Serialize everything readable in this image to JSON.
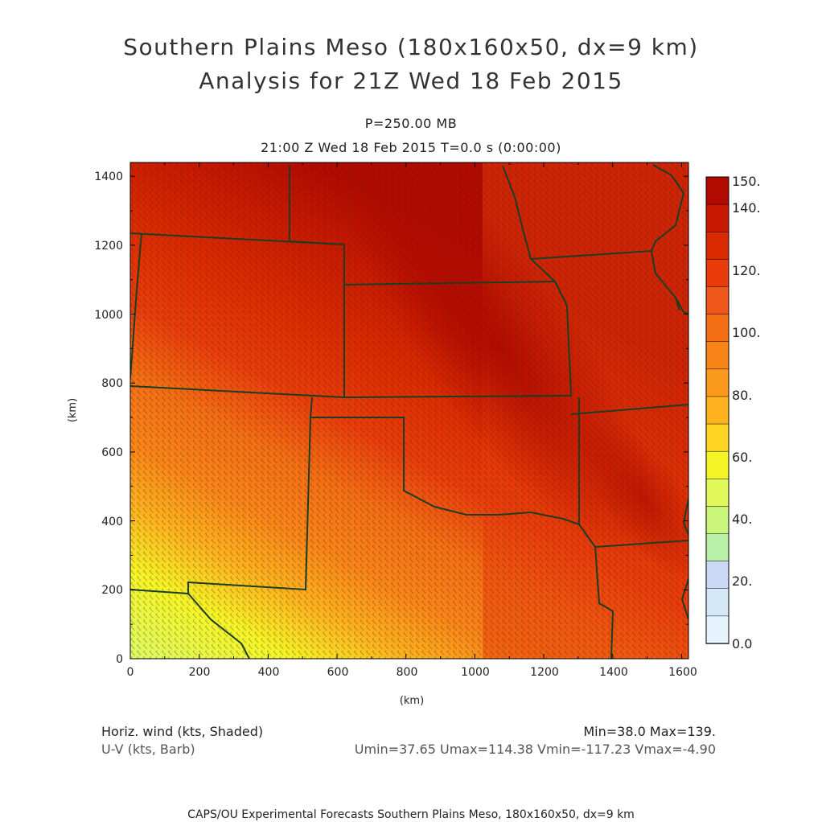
{
  "titles": {
    "line1": "Southern Plains Meso (180x160x50, dx=9 km)",
    "line2": "Analysis for 21Z Wed 18 Feb 2015",
    "level": "P=250.00 MB",
    "time": "21:00 Z Wed 18 Feb 2015    T=0.0 s (0:00:00)"
  },
  "axes": {
    "x_label": "(km)",
    "y_label": "(km)",
    "x_ticks": [
      "0",
      "200",
      "400",
      "600",
      "800",
      "1000",
      "1200",
      "1400",
      "1600"
    ],
    "y_ticks": [
      "0",
      "200",
      "400",
      "600",
      "800",
      "1000",
      "1200",
      "1400"
    ],
    "x_range": [
      0,
      1620
    ],
    "y_range": [
      0,
      1440
    ]
  },
  "colorbar": {
    "labels": [
      "150.",
      "140.",
      "120.",
      "100.",
      "80.",
      "60.",
      "40.",
      "20.",
      "0.0"
    ],
    "colors": [
      "#b30a00",
      "#c81800",
      "#dc2a00",
      "#ea3c0a",
      "#f0581a",
      "#f46e14",
      "#f98418",
      "#fb9a1c",
      "#fdb21e",
      "#fed522",
      "#f5f426",
      "#e1f85a",
      "#c8f57a",
      "#b8f0a8",
      "#c9d8f5",
      "#d4e8f8",
      "#e4f3fc"
    ]
  },
  "field": {
    "name": "Horiz. wind (kts, Shaded)",
    "vector": "U-V (kts, Barb)",
    "min_max": "Min=38.0 Max=139.",
    "components": "Umin=37.65 Umax=114.38 Vmin=-117.23 Vmax=-4.90",
    "units": "kts",
    "max_band_axis": "northwest-southeast, 900-1500 km"
  },
  "footer": "CAPS/OU Experimental Forecasts  Southern Plains Meso, 180x160x50, dx=9 km"
}
